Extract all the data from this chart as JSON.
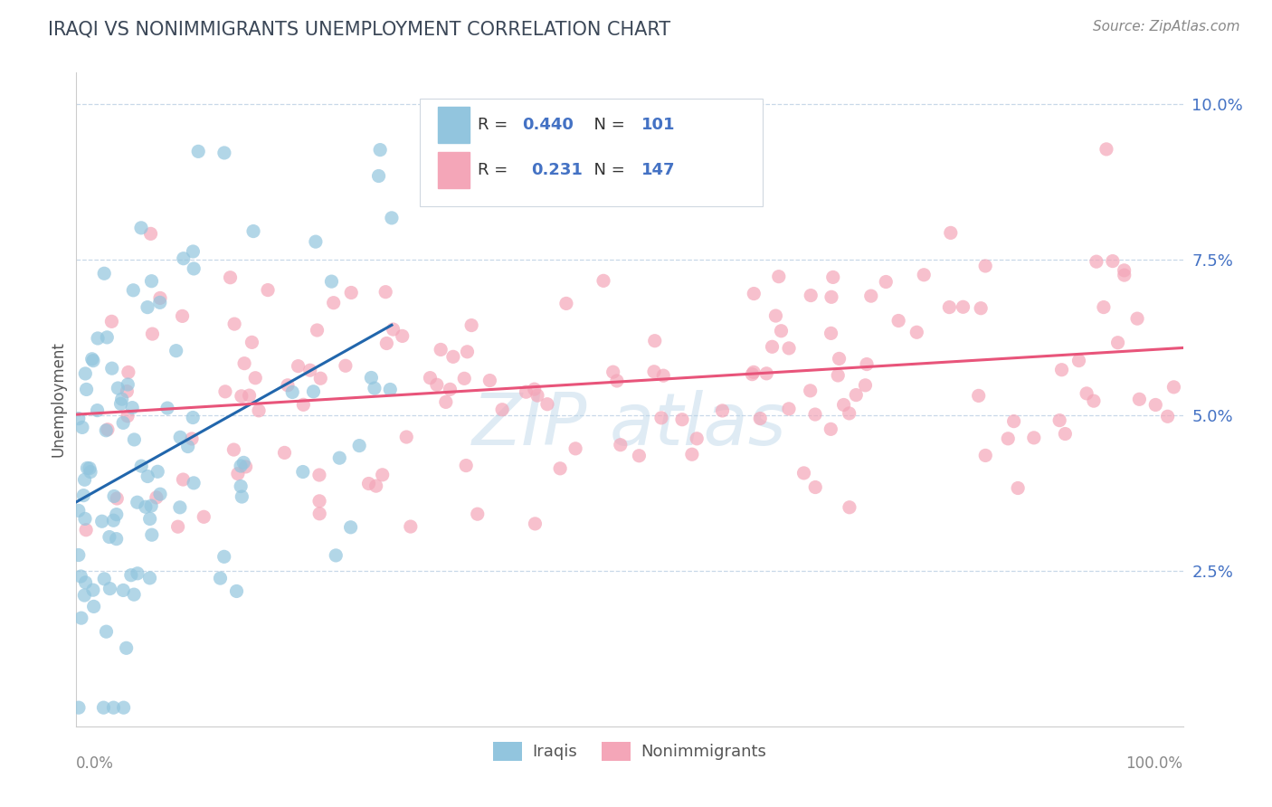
{
  "title": "IRAQI VS NONIMMIGRANTS UNEMPLOYMENT CORRELATION CHART",
  "source": "Source: ZipAtlas.com",
  "ylabel": "Unemployment",
  "ytick_labels": [
    "2.5%",
    "5.0%",
    "7.5%",
    "10.0%"
  ],
  "ytick_vals": [
    2.5,
    5.0,
    7.5,
    10.0
  ],
  "xlim": [
    0,
    100
  ],
  "ylim_data": [
    0,
    10.5
  ],
  "iraqis_R": 0.44,
  "iraqis_N": 101,
  "nonimm_R": 0.231,
  "nonimm_N": 147,
  "iraqis_color": "#92c5de",
  "nonimm_color": "#f4a6b8",
  "iraqis_line_color": "#2166ac",
  "nonimm_line_color": "#e8547a",
  "watermark": "ZIPAtlas",
  "background_color": "#ffffff",
  "grid_color": "#c8d8e8",
  "title_color": "#3c4858",
  "source_color": "#888888",
  "tick_color": "#4472c4",
  "label_color": "#555555"
}
